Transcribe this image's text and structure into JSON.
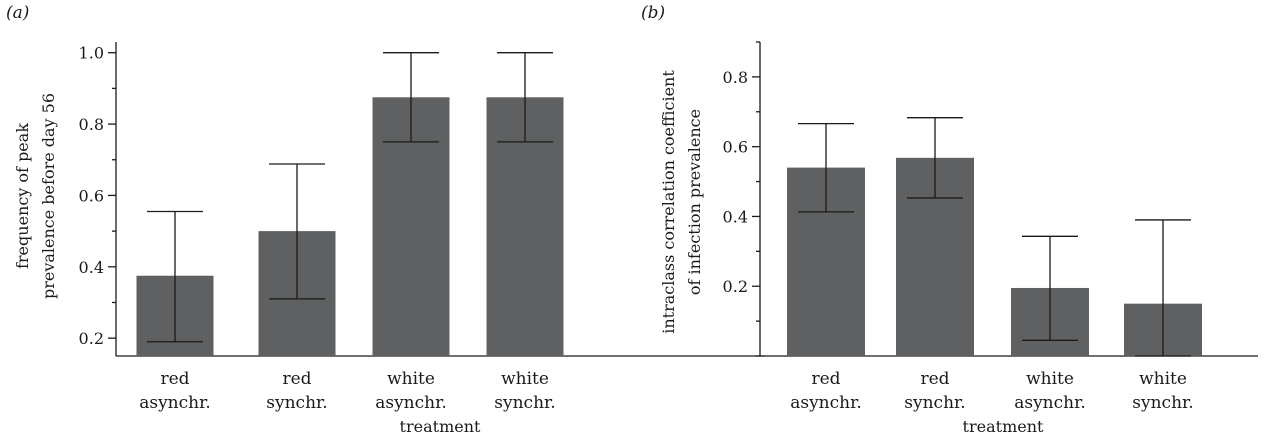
{
  "chart_data": [
    {
      "type": "bar",
      "panel_label": "(a)",
      "categories": [
        [
          "red",
          "asynchr."
        ],
        [
          "red",
          "synchr."
        ],
        [
          "white",
          "asynchr."
        ],
        [
          "white",
          "synchr."
        ]
      ],
      "values": [
        0.375,
        0.5,
        0.875,
        0.875
      ],
      "error_low": [
        0.19,
        0.31,
        0.75,
        0.75
      ],
      "error_high": [
        0.555,
        0.688,
        1.0,
        1.0
      ],
      "xlabel": "treatment",
      "ylabel": [
        "frequency of peak",
        "prevalence before day 56"
      ],
      "ylim": [
        0.15,
        1.03
      ],
      "yticks": [
        0.2,
        0.4,
        0.6,
        0.8,
        1.0
      ],
      "ytick_labels": [
        "0.2",
        "0.4",
        "0.6",
        "0.8",
        "1.0"
      ],
      "minor_step": 0.1,
      "bar_color": "#5f6062",
      "grid": false
    },
    {
      "type": "bar",
      "panel_label": "(b)",
      "categories": [
        [
          "red",
          "asynchr."
        ],
        [
          "red",
          "synchr."
        ],
        [
          "white",
          "asynchr."
        ],
        [
          "white",
          "synchr."
        ]
      ],
      "values": [
        0.54,
        0.568,
        0.195,
        0.15
      ],
      "error_low": [
        0.413,
        0.453,
        0.045,
        0.0
      ],
      "error_high": [
        0.666,
        0.683,
        0.343,
        0.39
      ],
      "xlabel": "treatment",
      "ylabel": [
        "intraclass correlation coefficient",
        "of infection prevalence"
      ],
      "ylim": [
        0.0,
        0.9
      ],
      "yticks": [
        0.2,
        0.4,
        0.6,
        0.8
      ],
      "ytick_labels": [
        "0.2",
        "0.4",
        "0.6",
        "0.8"
      ],
      "minor_step": 0.1,
      "bar_color": "#5f6062",
      "grid": false
    }
  ]
}
